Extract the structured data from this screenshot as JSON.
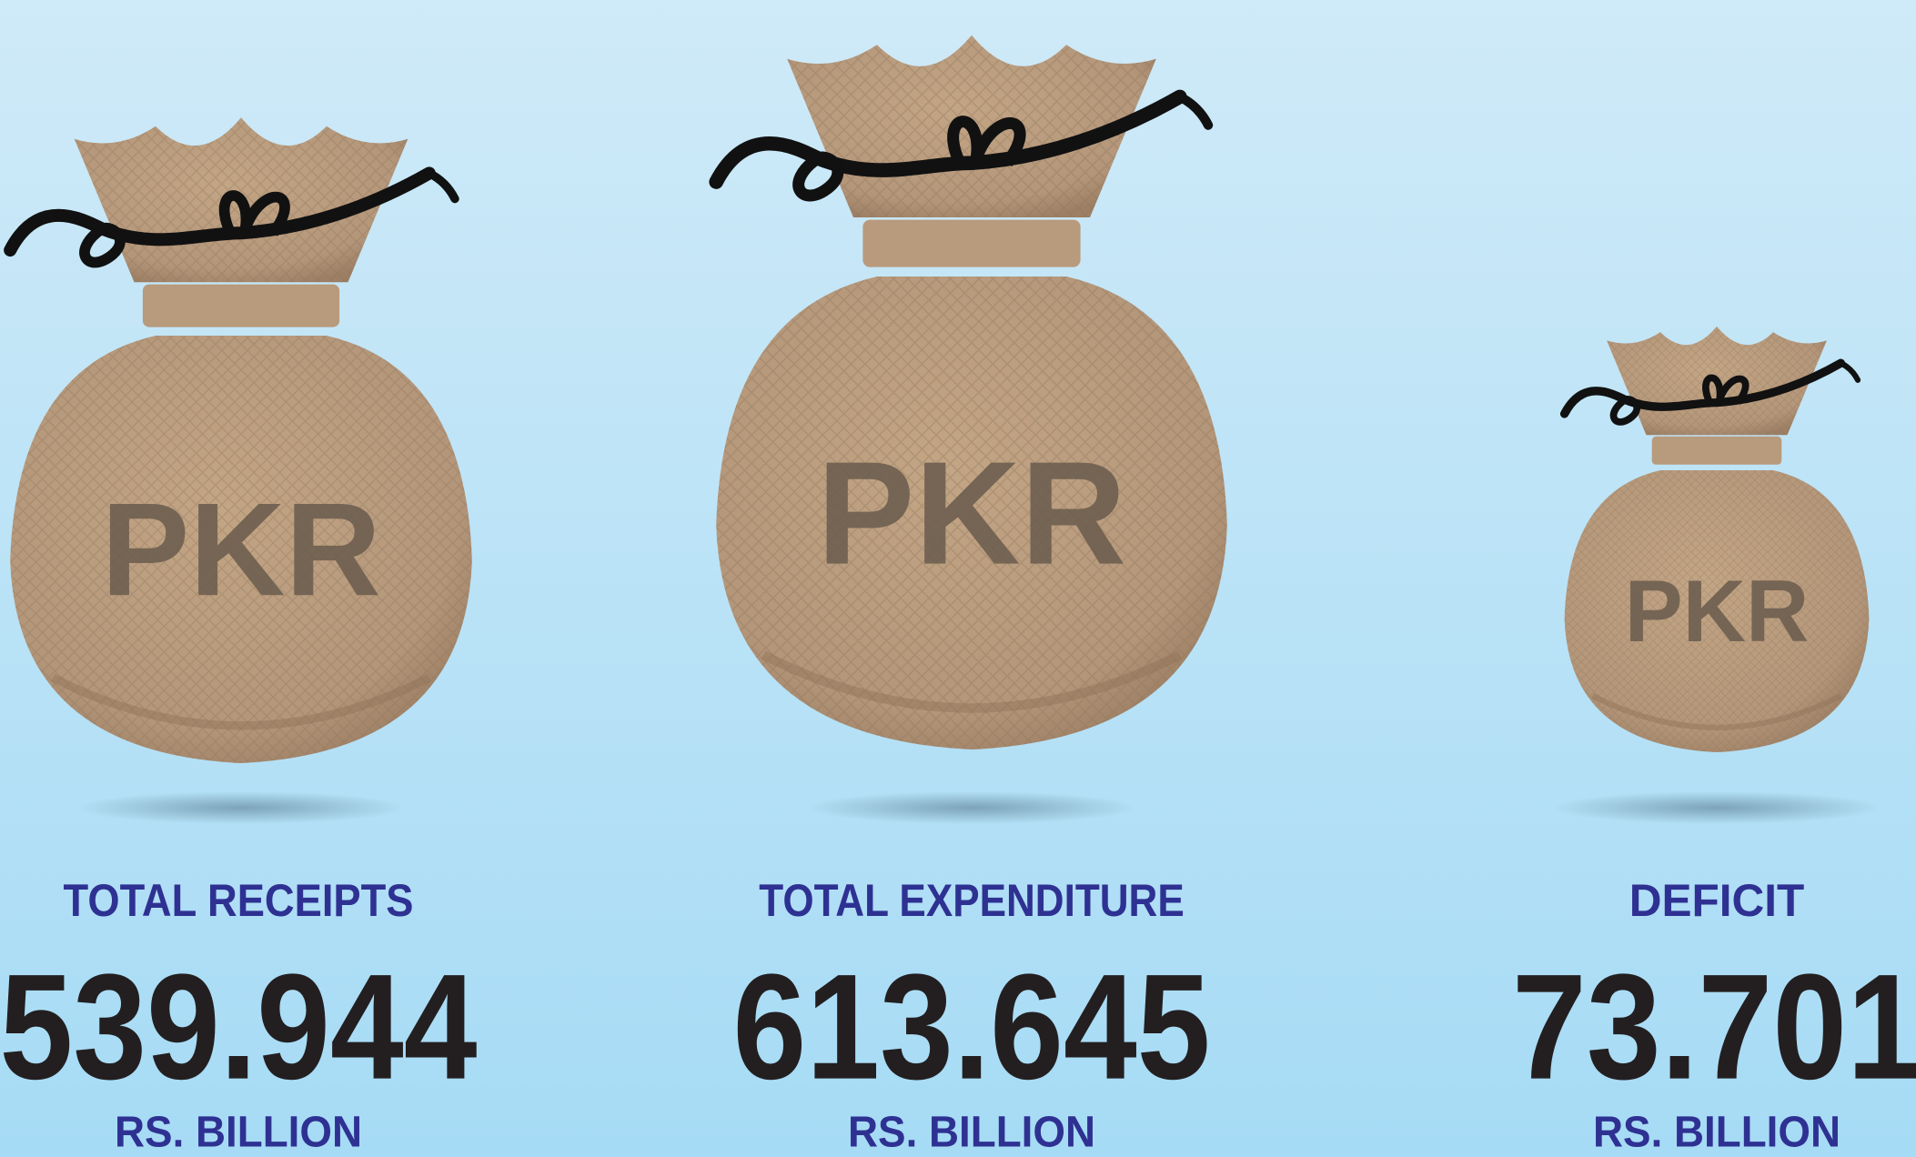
{
  "items": [
    {
      "bag_label": "PKR",
      "label": "TOTAL RECEIPTS",
      "value": 539.944,
      "unit": "RS. BILLION"
    },
    {
      "bag_label": "PKR",
      "label": "TOTAL EXPENDITURE",
      "value": 613.645,
      "unit": "RS. BILLION"
    },
    {
      "bag_label": "PKR",
      "label": "DEFICIT",
      "value": 73.701,
      "unit": "RS. BILLION"
    }
  ]
}
